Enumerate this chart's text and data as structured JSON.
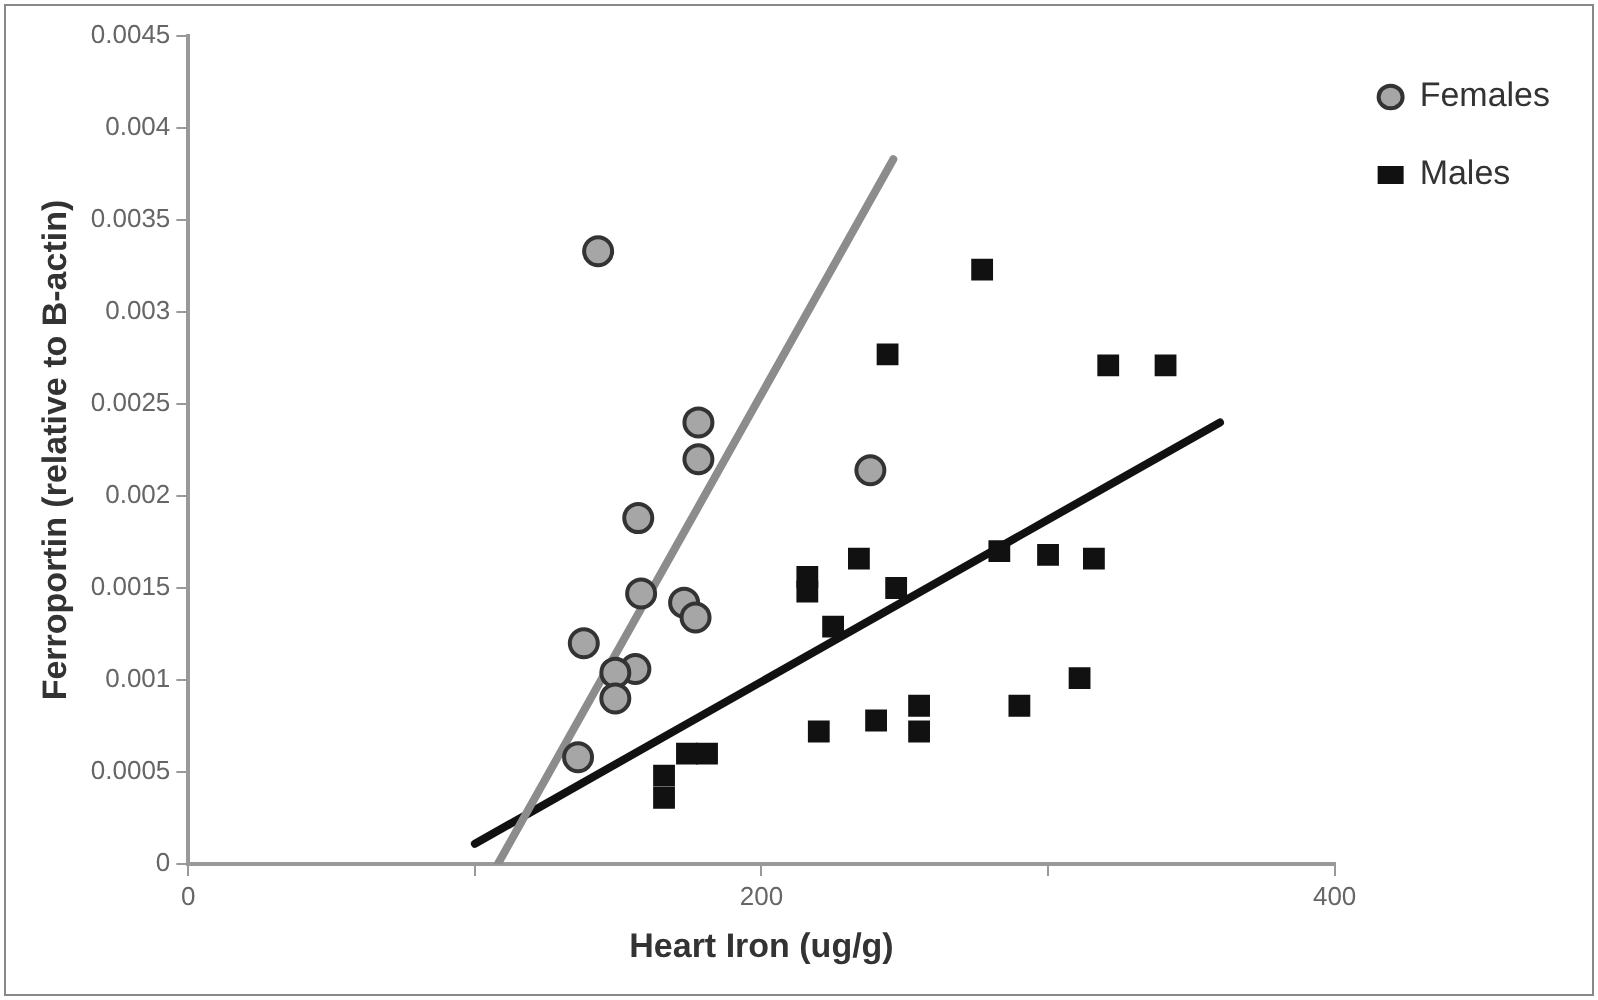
{
  "chart_data": {
    "type": "scatter",
    "xlabel": "Heart Iron (ug/g)",
    "ylabel": "Ferroportin (relative to B-actin)",
    "xlim": [
      0,
      400
    ],
    "xticks": [
      0,
      {
        "value": 100,
        "label": null
      },
      200,
      {
        "value": 300,
        "label": null
      },
      400
    ],
    "ylim": [
      0,
      0.0045
    ],
    "yticks": [
      0,
      0.0005,
      0.001,
      0.0015,
      0.002,
      0.0025,
      0.003,
      0.0035,
      0.004,
      0.0045
    ],
    "grid": false,
    "legend": "right",
    "series": [
      {
        "name": "Females",
        "marker": "circle",
        "color": "#a6a6a6",
        "x": [
          143,
          178,
          178,
          157,
          158,
          173,
          177,
          138,
          156,
          149,
          149,
          136,
          238
        ],
        "values": [
          0.00333,
          0.0024,
          0.0022,
          0.00188,
          0.00147,
          0.00142,
          0.00134,
          0.0012,
          0.00106,
          0.00104,
          0.0009,
          0.00058,
          0.00214
        ]
      },
      {
        "name": "Males",
        "marker": "square",
        "color": "#111111",
        "x": [
          277,
          244,
          321,
          341,
          234,
          216,
          216,
          247,
          283,
          300,
          316,
          225,
          311,
          290,
          220,
          240,
          255,
          255,
          174,
          166,
          166,
          181
        ],
        "values": [
          0.00323,
          0.00277,
          0.00271,
          0.00271,
          0.00166,
          0.00156,
          0.00148,
          0.0015,
          0.0017,
          0.00168,
          0.00166,
          0.00129,
          0.00101,
          0.00086,
          0.00072,
          0.00078,
          0.00086,
          0.00072,
          0.0006,
          0.00048,
          0.00036,
          0.0006
        ]
      },
      {
        "type": "line",
        "marker": "none",
        "color": "#8c8c8c",
        "x": [
          108,
          246
        ],
        "values": [
          0,
          0.00383
        ]
      },
      {
        "type": "line",
        "marker": "none",
        "color": "#111111",
        "x": [
          100,
          360
        ],
        "values": [
          0.00011,
          0.0024
        ]
      }
    ]
  }
}
